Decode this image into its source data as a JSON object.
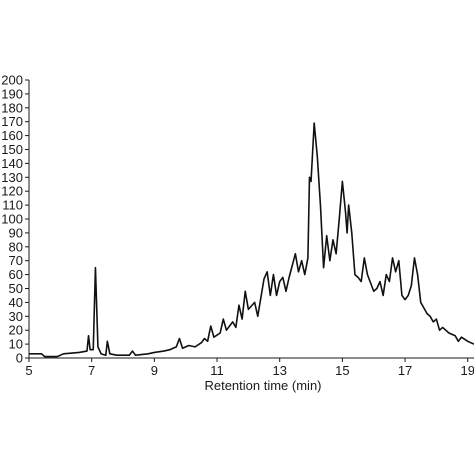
{
  "chart_data": {
    "type": "line",
    "xlabel": "Retention time (min)",
    "ylabel": "",
    "xlim": [
      5,
      19.2
    ],
    "ylim": [
      0,
      200
    ],
    "x_ticks": [
      5,
      7,
      9,
      11,
      13,
      15,
      17,
      19
    ],
    "y_ticks": [
      0,
      10,
      20,
      30,
      40,
      50,
      60,
      70,
      80,
      90,
      100,
      110,
      120,
      130,
      140,
      150,
      160,
      170,
      180,
      190,
      200
    ],
    "grid": false,
    "line_color": "#111111",
    "series": [
      {
        "points": [
          [
            5.0,
            3
          ],
          [
            5.4,
            3
          ],
          [
            5.5,
            1
          ],
          [
            5.9,
            1
          ],
          [
            6.1,
            3
          ],
          [
            6.6,
            4
          ],
          [
            6.85,
            5
          ],
          [
            6.9,
            16
          ],
          [
            6.95,
            6
          ],
          [
            7.05,
            6
          ],
          [
            7.12,
            65
          ],
          [
            7.2,
            8
          ],
          [
            7.3,
            3
          ],
          [
            7.45,
            2
          ],
          [
            7.5,
            12
          ],
          [
            7.58,
            3
          ],
          [
            7.8,
            2
          ],
          [
            8.2,
            2
          ],
          [
            8.3,
            5
          ],
          [
            8.4,
            2
          ],
          [
            8.8,
            3
          ],
          [
            9.0,
            4
          ],
          [
            9.3,
            5
          ],
          [
            9.5,
            6
          ],
          [
            9.7,
            8
          ],
          [
            9.8,
            14
          ],
          [
            9.9,
            7
          ],
          [
            10.1,
            9
          ],
          [
            10.3,
            8
          ],
          [
            10.5,
            11
          ],
          [
            10.6,
            14
          ],
          [
            10.7,
            12
          ],
          [
            10.8,
            23
          ],
          [
            10.9,
            15
          ],
          [
            11.1,
            18
          ],
          [
            11.2,
            28
          ],
          [
            11.3,
            20
          ],
          [
            11.5,
            26
          ],
          [
            11.6,
            22
          ],
          [
            11.7,
            38
          ],
          [
            11.8,
            28
          ],
          [
            11.9,
            48
          ],
          [
            12.0,
            35
          ],
          [
            12.2,
            40
          ],
          [
            12.3,
            30
          ],
          [
            12.5,
            57
          ],
          [
            12.6,
            62
          ],
          [
            12.7,
            45
          ],
          [
            12.8,
            60
          ],
          [
            12.9,
            45
          ],
          [
            13.0,
            55
          ],
          [
            13.1,
            58
          ],
          [
            13.2,
            48
          ],
          [
            13.3,
            58
          ],
          [
            13.5,
            75
          ],
          [
            13.6,
            62
          ],
          [
            13.7,
            70
          ],
          [
            13.8,
            60
          ],
          [
            13.9,
            72
          ],
          [
            13.95,
            130
          ],
          [
            14.0,
            127
          ],
          [
            14.1,
            169
          ],
          [
            14.2,
            145
          ],
          [
            14.3,
            110
          ],
          [
            14.4,
            65
          ],
          [
            14.5,
            88
          ],
          [
            14.6,
            70
          ],
          [
            14.7,
            85
          ],
          [
            14.8,
            75
          ],
          [
            14.9,
            100
          ],
          [
            15.0,
            127
          ],
          [
            15.1,
            105
          ],
          [
            15.15,
            90
          ],
          [
            15.2,
            110
          ],
          [
            15.3,
            90
          ],
          [
            15.4,
            60
          ],
          [
            15.5,
            58
          ],
          [
            15.6,
            55
          ],
          [
            15.7,
            72
          ],
          [
            15.8,
            60
          ],
          [
            16.0,
            48
          ],
          [
            16.1,
            50
          ],
          [
            16.2,
            55
          ],
          [
            16.3,
            45
          ],
          [
            16.4,
            60
          ],
          [
            16.5,
            55
          ],
          [
            16.6,
            72
          ],
          [
            16.7,
            62
          ],
          [
            16.8,
            70
          ],
          [
            16.9,
            45
          ],
          [
            17.0,
            42
          ],
          [
            17.1,
            45
          ],
          [
            17.2,
            52
          ],
          [
            17.3,
            72
          ],
          [
            17.4,
            60
          ],
          [
            17.5,
            40
          ],
          [
            17.7,
            32
          ],
          [
            17.8,
            30
          ],
          [
            17.9,
            26
          ],
          [
            18.0,
            28
          ],
          [
            18.1,
            20
          ],
          [
            18.2,
            22
          ],
          [
            18.4,
            18
          ],
          [
            18.6,
            16
          ],
          [
            18.7,
            12
          ],
          [
            18.8,
            15
          ],
          [
            19.0,
            12
          ],
          [
            19.2,
            10
          ]
        ]
      }
    ]
  }
}
